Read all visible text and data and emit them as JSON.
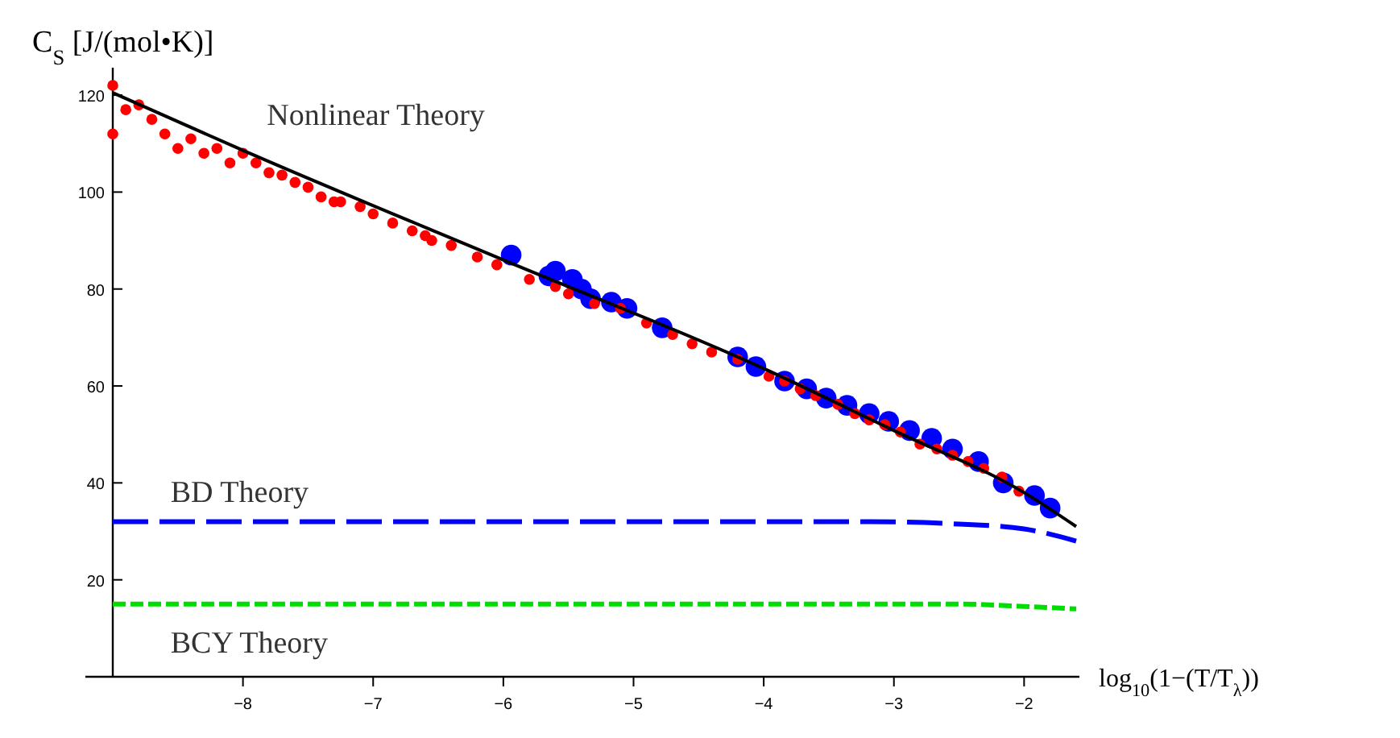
{
  "chart_data": {
    "type": "scatter",
    "ylabel": "C$_{S}$ [J/(mol•K)]",
    "xlabel": "log$_{10}$(1−(T/T$_{λ}$))",
    "xlim": [
      -9,
      -1.6
    ],
    "ylim": [
      0,
      125
    ],
    "xticks": [
      -8,
      -7,
      -6,
      -5,
      -4,
      -3,
      -2
    ],
    "yticks": [
      20,
      40,
      60,
      80,
      100,
      120
    ],
    "grid": false,
    "series": [
      {
        "marker": "circle",
        "color": "#0000ff",
        "x": [
          -5.94,
          -5.65,
          -5.6,
          -5.47,
          -5.4,
          -5.33,
          -5.17,
          -5.05,
          -4.78,
          -4.2,
          -4.06,
          -3.84,
          -3.67,
          -3.52,
          -3.36,
          -3.19,
          -3.04,
          -2.88,
          -2.71,
          -2.55,
          -2.35,
          -2.16,
          -1.92,
          -1.8
        ],
        "values": [
          87,
          82.7,
          83.7,
          82,
          80,
          78,
          77.3,
          76,
          72,
          66,
          64,
          61,
          59.4,
          57.5,
          56,
          54.3,
          52.7,
          50.8,
          49.2,
          47,
          44.4,
          40,
          37.4,
          34.8
        ]
      },
      {
        "marker": "circle",
        "color": "#ff0000",
        "x": [
          -9,
          -9,
          -8.9,
          -8.8,
          -8.7,
          -8.6,
          -8.5,
          -8.4,
          -8.3,
          -8.2,
          -8.1,
          -8,
          -7.9,
          -7.8,
          -7.7,
          -7.6,
          -7.5,
          -7.4,
          -7.3,
          -7.25,
          -7.1,
          -7,
          -6.85,
          -6.7,
          -6.6,
          -6.55,
          -6.4,
          -6.2,
          -6.05,
          -5.8,
          -5.6,
          -5.5,
          -5.3,
          -5.1,
          -4.9,
          -4.7,
          -4.55,
          -4.4,
          -4.2,
          -3.96,
          -3.84,
          -3.72,
          -3.6,
          -3.43,
          -3.3,
          -3.19,
          -3.07,
          -2.95,
          -2.8,
          -2.67,
          -2.55,
          -2.43,
          -2.31,
          -2.17,
          -2.04
        ],
        "values": [
          122,
          112,
          117,
          118,
          115,
          112,
          109,
          111,
          108,
          109,
          106,
          108,
          106,
          104,
          103.5,
          102,
          101,
          99,
          98,
          98,
          97,
          95.5,
          93.6,
          92,
          91,
          90,
          89,
          86.6,
          85,
          82,
          80.5,
          79,
          77,
          76,
          73,
          70.6,
          68.7,
          67,
          65.5,
          62,
          61,
          59.4,
          58,
          56.2,
          54.3,
          53,
          52,
          50.5,
          48,
          47,
          45.7,
          44.4,
          43,
          41.2,
          38.3
        ]
      },
      {
        "type": "line",
        "name": "Nonlinear Theory",
        "color": "#000000",
        "line_style": "solid",
        "x": [
          -9,
          -8,
          -6,
          -4,
          -3,
          -2,
          -1.6
        ],
        "values": [
          120.5,
          108.6,
          86,
          63.6,
          50.8,
          38,
          31
        ]
      },
      {
        "type": "line",
        "name": "BD Theory",
        "color": "#0000ff",
        "line_style": "dashed",
        "x": [
          -9,
          -3.2,
          -2.5,
          -2,
          -1.6
        ],
        "values": [
          32,
          32,
          31.5,
          30.5,
          28
        ]
      },
      {
        "type": "line",
        "name": "BCY Theory",
        "color": "#00dd00",
        "line_style": "dotted",
        "x": [
          -9,
          -2.5,
          -2,
          -1.6
        ],
        "values": [
          15,
          15,
          14.5,
          14
        ]
      }
    ]
  }
}
